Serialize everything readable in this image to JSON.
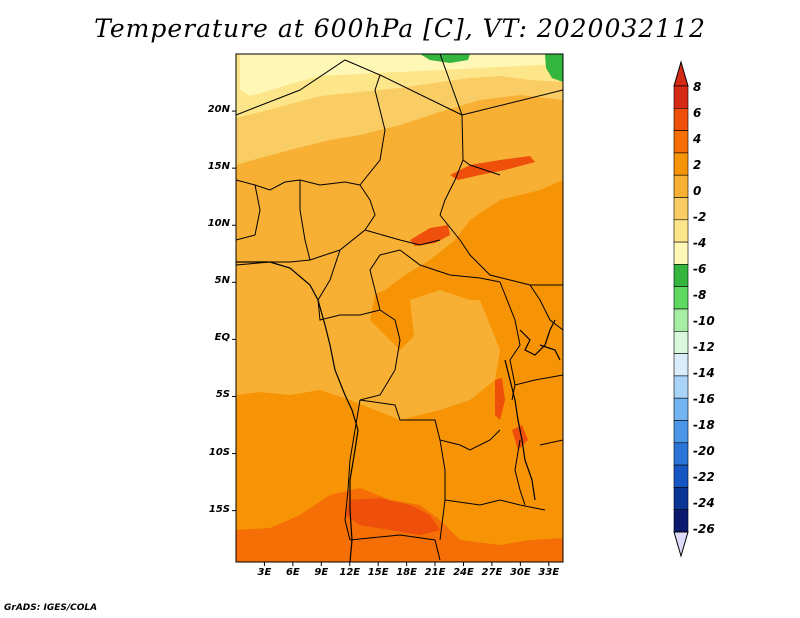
{
  "title": "Temperature at 600hPa [C], VT: 2020032112",
  "credit": "GrADS: IGES/COLA",
  "map": {
    "lat_ticks": [
      {
        "label": "20N",
        "value": 20
      },
      {
        "label": "15N",
        "value": 15
      },
      {
        "label": "10N",
        "value": 10
      },
      {
        "label": "5N",
        "value": 5
      },
      {
        "label": "EQ",
        "value": 0
      },
      {
        "label": "5S",
        "value": -5
      },
      {
        "label": "10S",
        "value": -10
      },
      {
        "label": "15S",
        "value": -15
      }
    ],
    "lon_ticks": [
      {
        "label": "3E",
        "value": 3
      },
      {
        "label": "6E",
        "value": 6
      },
      {
        "label": "9E",
        "value": 9
      },
      {
        "label": "12E",
        "value": 12
      },
      {
        "label": "15E",
        "value": 15
      },
      {
        "label": "18E",
        "value": 18
      },
      {
        "label": "21E",
        "value": 21
      },
      {
        "label": "24E",
        "value": 24
      },
      {
        "label": "27E",
        "value": 27
      },
      {
        "label": "30E",
        "value": 30
      },
      {
        "label": "33E",
        "value": 33
      }
    ],
    "lat_range": [
      -19.5,
      25
    ],
    "lon_range": [
      0,
      34.5
    ]
  },
  "colorbar": {
    "labels": [
      "8",
      "6",
      "4",
      "2",
      "0",
      "-2",
      "-4",
      "-6",
      "-8",
      "-10",
      "-12",
      "-14",
      "-16",
      "-18",
      "-20",
      "-22",
      "-24",
      "-26"
    ],
    "colors": [
      "#d72a14",
      "#ee4f0b",
      "#f56e06",
      "#f79405",
      "#f7b033",
      "#f9cd63",
      "#fde68a",
      "#fef7b5",
      "#33b53e",
      "#5fd95f",
      "#a7eea5",
      "#d9f8dc",
      "#dbecfb",
      "#a9d3f7",
      "#73b4f2",
      "#4c96e8",
      "#2b75d8",
      "#1556c2",
      "#0a3797",
      "#0a1a6e"
    ],
    "top_arrow_color": "#d72a14",
    "bottom_arrow_color": "#dcdcf8"
  }
}
